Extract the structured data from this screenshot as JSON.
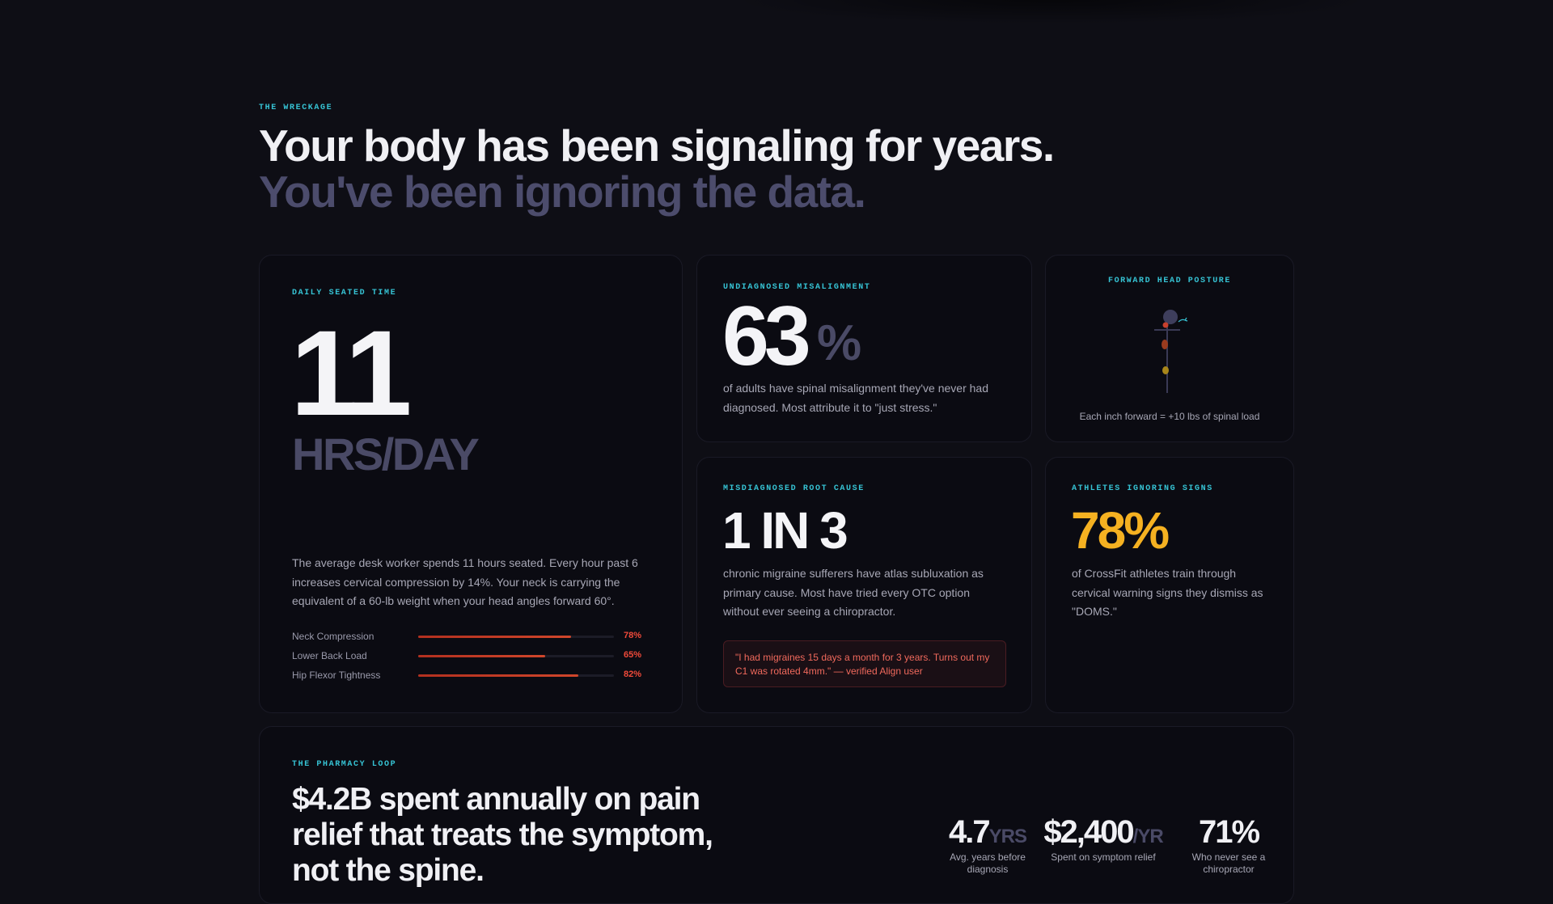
{
  "section": {
    "eyebrow": "THE WRECKAGE",
    "headline_line1": "Your body has been signaling for years.",
    "headline_line2": "You've been ignoring the data."
  },
  "seated": {
    "eyebrow": "DAILY SEATED TIME",
    "value": "11",
    "unit": "HRS/DAY",
    "description": "The average desk worker spends 11 hours seated. Every hour past 6 increases cervical compression by 14%. Your neck is carrying the equivalent of a 60-lb weight when your head angles forward 60°.",
    "bars": [
      {
        "label": "Neck Compression",
        "percent": 78,
        "percent_label": "78%"
      },
      {
        "label": "Lower Back Load",
        "percent": 65,
        "percent_label": "65%"
      },
      {
        "label": "Hip Flexor Tightness",
        "percent": 82,
        "percent_label": "82%"
      }
    ]
  },
  "misalignment": {
    "eyebrow": "UNDIAGNOSED MISALIGNMENT",
    "value": "63",
    "unit": "%",
    "description": "of adults have spinal misalignment they've never had diagnosed. Most attribute it to \"just stress.\""
  },
  "posture": {
    "eyebrow": "FORWARD HEAD POSTURE",
    "caption": "Each inch forward = +10 lbs of spinal load"
  },
  "migraine": {
    "eyebrow": "MISDIAGNOSED ROOT CAUSE",
    "value": "1 IN 3",
    "description": "chronic migraine sufferers have atlas subluxation as primary cause. Most have tried every OTC option without ever seeing a chiropractor.",
    "quote": "\"I had migraines 15 days a month for 3 years. Turns out my C1 was rotated 4mm.\" — verified Align user"
  },
  "athletes": {
    "eyebrow": "ATHLETES IGNORING SIGNS",
    "value": "78%",
    "description": "of CrossFit athletes train through cervical warning signs they dismiss as \"DOMS.\""
  },
  "pharmacy": {
    "eyebrow": "THE PHARMACY LOOP",
    "headline": "$4.2B spent annually on pain relief that treats the symptom, not the spine.",
    "stats": [
      {
        "value": "4.7",
        "unit": "YRS",
        "label": "Avg. years before diagnosis"
      },
      {
        "value": "$2,400",
        "unit": "/YR",
        "label": "Spent on symptom relief"
      },
      {
        "value": "71%",
        "unit": "",
        "label": "Who never see a chiropractor"
      }
    ]
  },
  "colors": {
    "accent_cyan": "#36c3d4",
    "accent_amber": "#f5b121",
    "alert_red": "#f04a3a",
    "muted_violet": "#4c4c6c",
    "background": "#0e0e15"
  }
}
